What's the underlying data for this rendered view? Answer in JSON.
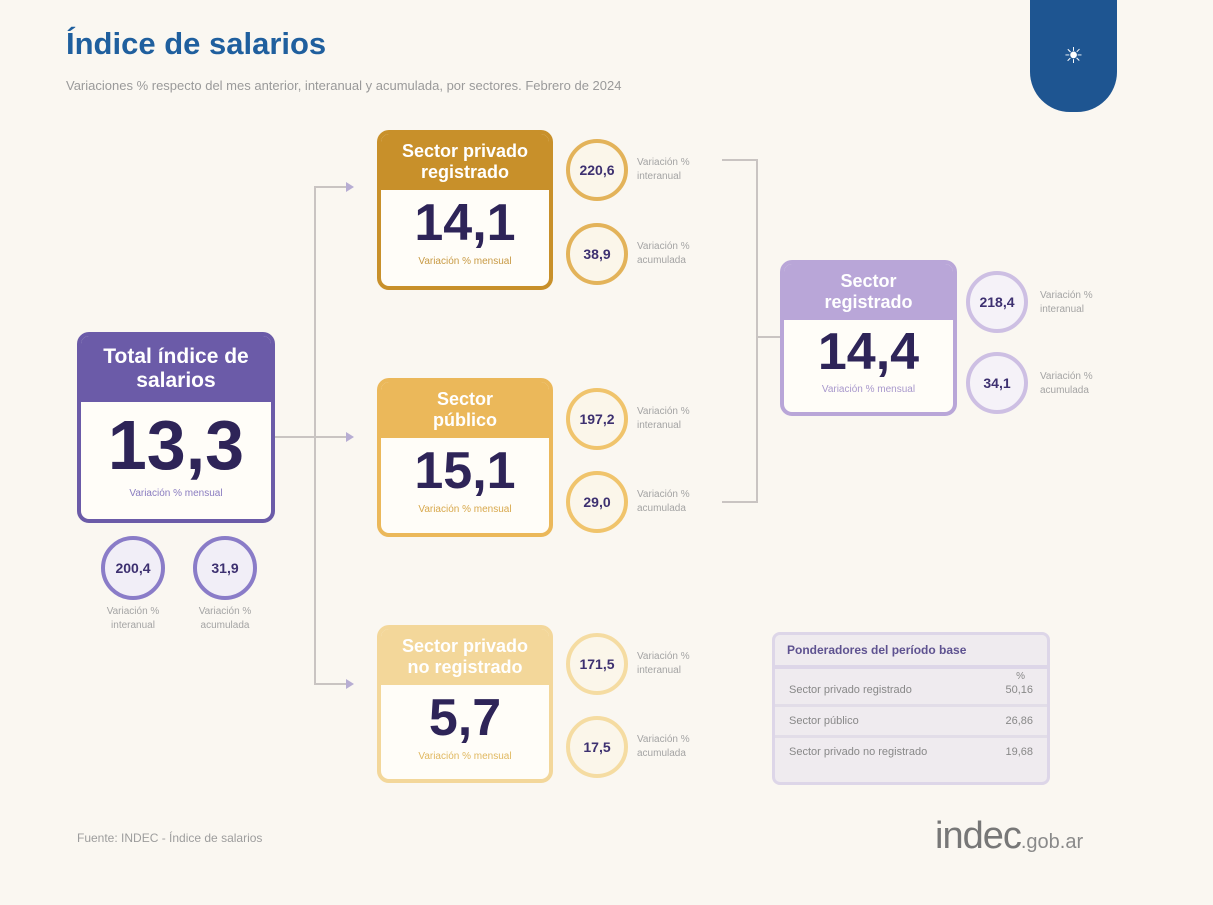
{
  "header": {
    "title": "Índice de salarios",
    "subtitle": "Variaciones % respecto del mes anterior, interanual y acumulada, por sectores. Febrero de 2024",
    "logo_icon": "indec-emblem-icon"
  },
  "colors": {
    "title": "#1f5f9e",
    "total": "#6b5ba8",
    "privado_registrado": "#c8902a",
    "publico": "#ebb85a",
    "privado_no_registrado": "#f3d79a",
    "registrado": "#b9a6d8"
  },
  "total": {
    "title": "Total índice de salarios",
    "value": "13,3",
    "label": "Variación % mensual",
    "interanual": "200,4",
    "interanual_label": "Variación % interanual",
    "acumulada": "31,9",
    "acumulada_label": "Variación % acumulada"
  },
  "privado_registrado": {
    "title": "Sector privado registrado",
    "value": "14,1",
    "label": "Variación % mensual",
    "interanual": "220,6",
    "interanual_label": "Variación % interanual",
    "acumulada": "38,9",
    "acumulada_label": "Variación % acumulada"
  },
  "publico": {
    "title": "Sector público",
    "value": "15,1",
    "label": "Variación % mensual",
    "interanual": "197,2",
    "interanual_label": "Variación % interanual",
    "acumulada": "29,0",
    "acumulada_label": "Variación % acumulada"
  },
  "no_registrado": {
    "title": "Sector privado no registrado",
    "value": "5,7",
    "label": "Variación % mensual",
    "interanual": "171,5",
    "interanual_label": "Variación % interanual",
    "acumulada": "17,5",
    "acumulada_label": "Variación % acumulada"
  },
  "registrado": {
    "title": "Sector registrado",
    "value": "14,4",
    "label": "Variación % mensual",
    "interanual": "218,4",
    "interanual_label": "Variación % interanual",
    "acumulada": "34,1",
    "acumulada_label": "Variación % acumulada"
  },
  "table": {
    "title": "Ponderadores del período base",
    "unit": "%",
    "rows": [
      {
        "label": "Sector privado registrado",
        "value": "50,16"
      },
      {
        "label": "Sector público",
        "value": "26,86"
      },
      {
        "label": "Sector privado no registrado",
        "value": "19,68"
      }
    ]
  },
  "footer": {
    "source": "Fuente: INDEC - Índice de salarios",
    "site": "indec",
    "site_suffix": ".gob.ar"
  }
}
